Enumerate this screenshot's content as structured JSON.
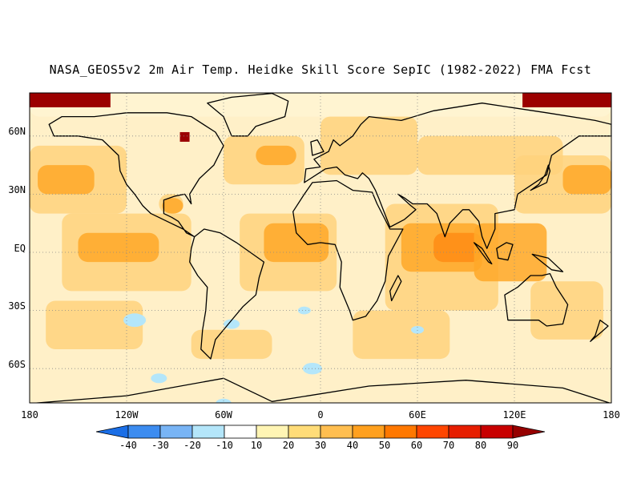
{
  "title": "NASA_GEOS5v2 2m Air Temp. Heidke Skill Score SepIC (1982-2022) FMA Fcst",
  "lon_labels": [
    "180",
    "120W",
    "60W",
    "0",
    "60E",
    "120E",
    "180"
  ],
  "lat_labels": [
    "60N",
    "30N",
    "EQ",
    "30S",
    "60S"
  ],
  "colorbar": {
    "labels": [
      "-40",
      "-30",
      "-20",
      "-10",
      "10",
      "20",
      "30",
      "40",
      "50",
      "60",
      "70",
      "80",
      "90"
    ],
    "colors": [
      "#1a6ee6",
      "#3c8cf0",
      "#78b4f5",
      "#b4e6fa",
      "#ffffff",
      "#fff5b4",
      "#ffdc78",
      "#ffbe50",
      "#ffa01e",
      "#ff7800",
      "#ff4600",
      "#e61e00",
      "#c80000",
      "#960000"
    ]
  },
  "map_colors": {
    "ocean_base": "#fff0c8",
    "land_base": "#fff5d2",
    "light_orange": "#ffd27d",
    "orange": "#ffa828",
    "dark_orange": "#ff8c14",
    "red": "#e62800",
    "dark_red": "#9b0000",
    "light_blue": "#b4e6fa",
    "coast": "#000000",
    "grid": "#888888"
  }
}
